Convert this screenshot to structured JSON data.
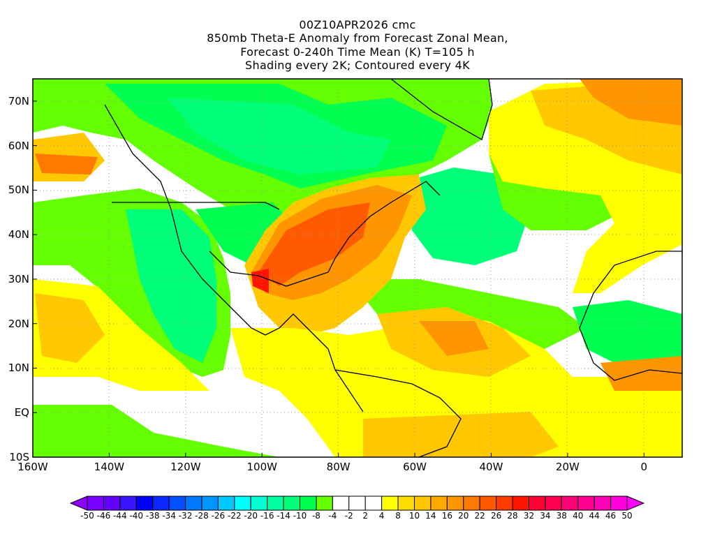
{
  "title": {
    "line1": "00Z10APR2026 cmc",
    "line2": "850mb Theta-E Anomaly from Forecast Zonal Mean,",
    "line3": "Forecast 0-240h Time Mean (K) T=105 h",
    "line4": "Shading every 2K; Contoured every 4K"
  },
  "map": {
    "lon_range": [
      -160,
      10
    ],
    "lat_range": [
      -10,
      75
    ],
    "lon_labels": [
      {
        "lon": -160,
        "label": "160W"
      },
      {
        "lon": -140,
        "label": "140W"
      },
      {
        "lon": -120,
        "label": "120W"
      },
      {
        "lon": -100,
        "label": "100W"
      },
      {
        "lon": -80,
        "label": "80W"
      },
      {
        "lon": -60,
        "label": "60W"
      },
      {
        "lon": -40,
        "label": "40W"
      },
      {
        "lon": -20,
        "label": "20W"
      },
      {
        "lon": 0,
        "label": "0"
      }
    ],
    "lat_labels": [
      {
        "lat": 70,
        "label": "70N"
      },
      {
        "lat": 60,
        "label": "60N"
      },
      {
        "lat": 50,
        "label": "50N"
      },
      {
        "lat": 40,
        "label": "40N"
      },
      {
        "lat": 30,
        "label": "30N"
      },
      {
        "lat": 20,
        "label": "20N"
      },
      {
        "lat": 10,
        "label": "10N"
      },
      {
        "lat": 0,
        "label": "EQ"
      },
      {
        "lat": -10,
        "label": "10S"
      }
    ]
  },
  "colorbar": {
    "labels": [
      "-50",
      "-46",
      "-44",
      "-40",
      "-38",
      "-34",
      "-32",
      "-28",
      "-26",
      "-22",
      "-20",
      "-16",
      "-14",
      "-10",
      "-8",
      "-4",
      "-2",
      "2",
      "4",
      "8",
      "10",
      "14",
      "16",
      "20",
      "22",
      "26",
      "28",
      "32",
      "34",
      "38",
      "40",
      "44",
      "46",
      "50"
    ],
    "under_color": "#8c00ff",
    "over_color": "#ff00ff",
    "colors": [
      "#7a00ff",
      "#6400ff",
      "#3c14ff",
      "#0000ff",
      "#0a28ff",
      "#0050ff",
      "#0078ff",
      "#0096ff",
      "#00c8ff",
      "#00ffff",
      "#00ffd2",
      "#00ffa0",
      "#00ff78",
      "#00ff50",
      "#64ff00",
      "#ffffff",
      "#ffffff",
      "#ffffff",
      "#ffff00",
      "#ffdc00",
      "#ffc800",
      "#ffaa00",
      "#ff9600",
      "#ff7800",
      "#ff5a00",
      "#ff3c00",
      "#ff1400",
      "#ff0032",
      "#ff0050",
      "#ff0078",
      "#ff0090",
      "#ff00b4",
      "#ff00dc"
    ]
  }
}
